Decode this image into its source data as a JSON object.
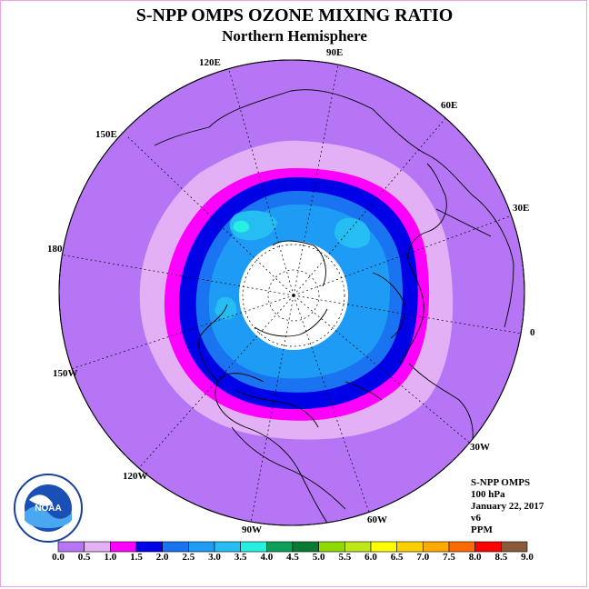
{
  "header": {
    "title": "S-NPP OMPS OZONE MIXING RATIO",
    "subtitle": "Northern Hemisphere"
  },
  "longitude_labels": [
    {
      "label": "90E"
    },
    {
      "label": "60E"
    },
    {
      "label": "30E"
    },
    {
      "label": "0"
    },
    {
      "label": "30W"
    },
    {
      "label": "60W"
    },
    {
      "label": "90W"
    },
    {
      "label": "120W"
    },
    {
      "label": "150W"
    },
    {
      "label": "180"
    },
    {
      "label": "150E"
    },
    {
      "label": "120E"
    }
  ],
  "info": {
    "instrument": "S-NPP OMPS",
    "level": "100 hPa",
    "date": "January 22, 2017",
    "version": "v6",
    "units": "PPM"
  },
  "logo": {
    "text": "NOAA"
  },
  "colorbar": {
    "ticks": [
      "0.0",
      "0.5",
      "1.0",
      "1.5",
      "2.0",
      "2.5",
      "3.0",
      "3.5",
      "4.0",
      "4.5",
      "5.0",
      "5.5",
      "6.0",
      "6.5",
      "7.0",
      "7.5",
      "8.0",
      "8.5",
      "9.0"
    ],
    "colors": [
      "#b675f5",
      "#e3b0f5",
      "#ff00ff",
      "#0000e6",
      "#1a73f0",
      "#1e9cf5",
      "#26bdf2",
      "#26f0e0",
      "#0aa05a",
      "#0a7a32",
      "#8fd900",
      "#bfe81a",
      "#ffff00",
      "#ffd000",
      "#ffaa00",
      "#ff6a00",
      "#ff0000",
      "#8a5a3a"
    ]
  }
}
